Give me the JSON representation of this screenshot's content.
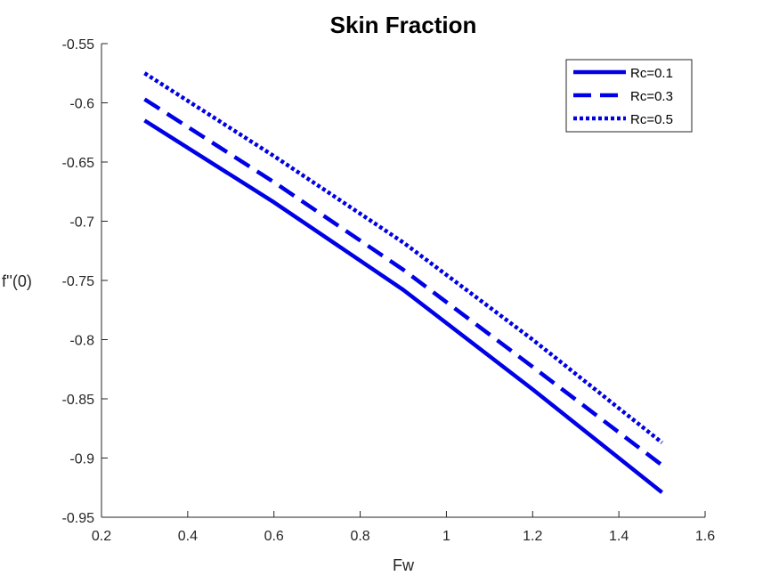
{
  "chart_data": {
    "type": "line",
    "title": "Skin Fraction",
    "xlabel": "Fw",
    "ylabel": "f''(0)",
    "xlim": [
      0.2,
      1.6
    ],
    "ylim": [
      -0.95,
      -0.55
    ],
    "xticks": [
      0.2,
      0.4,
      0.6,
      0.8,
      1,
      1.2,
      1.4,
      1.6
    ],
    "xtick_labels": [
      "0.2",
      "0.4",
      "0.6",
      "0.8",
      "1",
      "1.2",
      "1.4",
      "1.6"
    ],
    "yticks": [
      -0.55,
      -0.6,
      -0.65,
      -0.7,
      -0.75,
      -0.8,
      -0.85,
      -0.9,
      -0.95
    ],
    "ytick_labels": [
      "-0.55",
      "-0.6",
      "-0.65",
      "-0.7",
      "-0.75",
      "-0.8",
      "-0.85",
      "-0.9",
      "-0.95"
    ],
    "grid": false,
    "legend_position": "top-right",
    "color": "#0000e6",
    "x": [
      0.3,
      0.6,
      0.9,
      1.2,
      1.5
    ],
    "series": [
      {
        "name": "Rc=0.1",
        "style": "solid",
        "values": [
          -0.615,
          -0.684,
          -0.758,
          -0.842,
          -0.929
        ]
      },
      {
        "name": "Rc=0.3",
        "style": "dashed",
        "values": [
          -0.597,
          -0.667,
          -0.741,
          -0.823,
          -0.906
        ]
      },
      {
        "name": "Rc=0.5",
        "style": "dotted",
        "values": [
          -0.575,
          -0.645,
          -0.718,
          -0.8,
          -0.887
        ]
      }
    ]
  }
}
